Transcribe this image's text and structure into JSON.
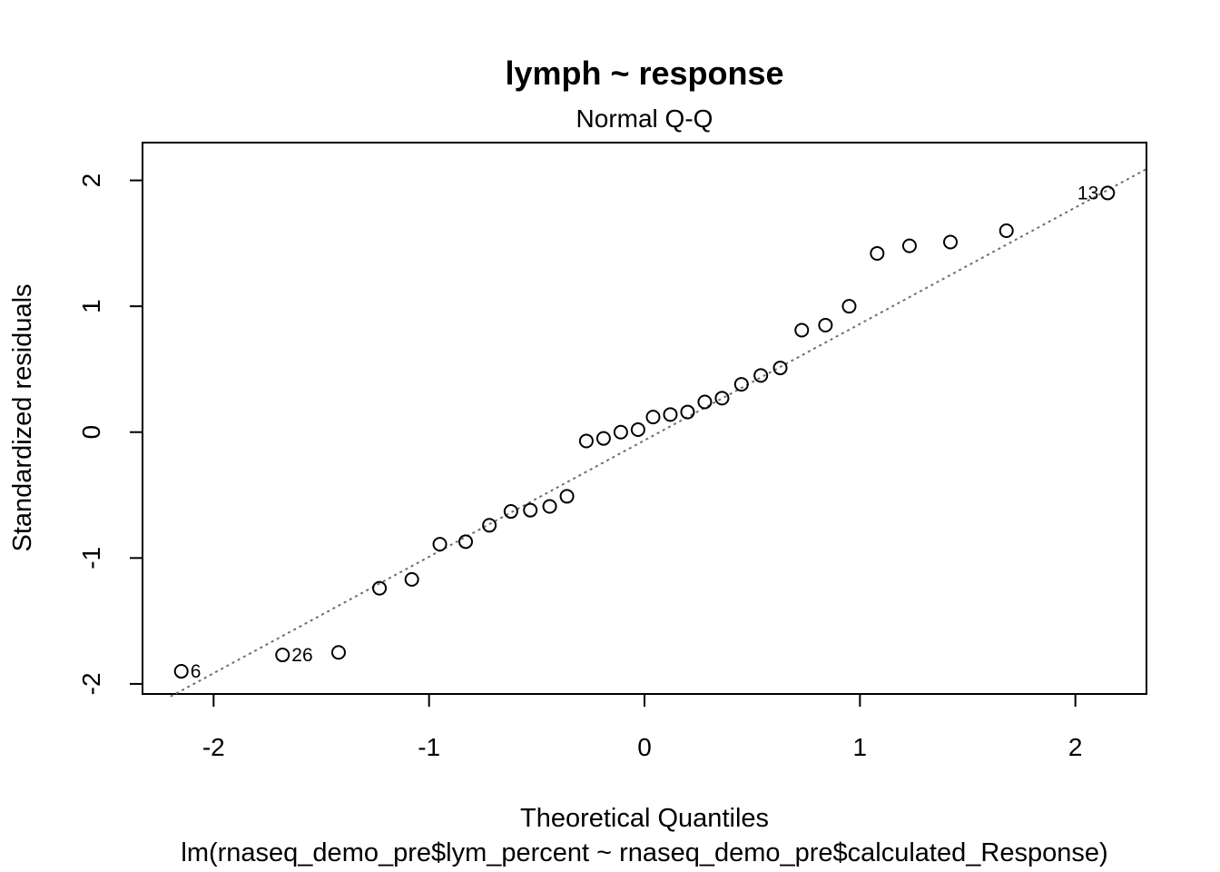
{
  "chart_data": {
    "type": "scatter",
    "title": "lymph ~ response",
    "subtitle": "Normal Q-Q",
    "xlabel": "Theoretical Quantiles",
    "ylabel": "Standardized residuals",
    "caption": "lm(rnaseq_demo_pre$lym_percent ~ rnaseq_demo_pre$calculated_Response)",
    "xlim": [
      -2.33,
      2.33
    ],
    "ylim": [
      -2.08,
      2.3
    ],
    "xticks": [
      "-2",
      "-1",
      "0",
      "1",
      "2"
    ],
    "yticks": [
      "-2",
      "-1",
      "0",
      "1",
      "2"
    ],
    "grid": false,
    "reference_line": {
      "style": "dotted",
      "color": "#6e6e6e",
      "points": [
        [
          -2.2,
          -2.1
        ],
        [
          2.33,
          2.09
        ]
      ]
    },
    "points": [
      {
        "x": -2.15,
        "y": -1.9,
        "label": "6"
      },
      {
        "x": -1.68,
        "y": -1.77,
        "label": "26"
      },
      {
        "x": -1.42,
        "y": -1.75
      },
      {
        "x": -1.23,
        "y": -1.24
      },
      {
        "x": -1.08,
        "y": -1.17
      },
      {
        "x": -0.95,
        "y": -0.89
      },
      {
        "x": -0.83,
        "y": -0.87
      },
      {
        "x": -0.72,
        "y": -0.74
      },
      {
        "x": -0.62,
        "y": -0.63
      },
      {
        "x": -0.53,
        "y": -0.62
      },
      {
        "x": -0.44,
        "y": -0.59
      },
      {
        "x": -0.36,
        "y": -0.51
      },
      {
        "x": -0.27,
        "y": -0.07
      },
      {
        "x": -0.19,
        "y": -0.05
      },
      {
        "x": -0.11,
        "y": 0.0
      },
      {
        "x": -0.03,
        "y": 0.02
      },
      {
        "x": 0.04,
        "y": 0.12
      },
      {
        "x": 0.12,
        "y": 0.14
      },
      {
        "x": 0.2,
        "y": 0.16
      },
      {
        "x": 0.28,
        "y": 0.24
      },
      {
        "x": 0.36,
        "y": 0.27
      },
      {
        "x": 0.45,
        "y": 0.38
      },
      {
        "x": 0.54,
        "y": 0.45
      },
      {
        "x": 0.63,
        "y": 0.51
      },
      {
        "x": 0.73,
        "y": 0.81
      },
      {
        "x": 0.84,
        "y": 0.85
      },
      {
        "x": 0.95,
        "y": 1.0
      },
      {
        "x": 1.08,
        "y": 1.42
      },
      {
        "x": 1.23,
        "y": 1.48
      },
      {
        "x": 1.42,
        "y": 1.51
      },
      {
        "x": 1.68,
        "y": 1.6
      },
      {
        "x": 2.15,
        "y": 1.9,
        "label": "13"
      }
    ]
  }
}
